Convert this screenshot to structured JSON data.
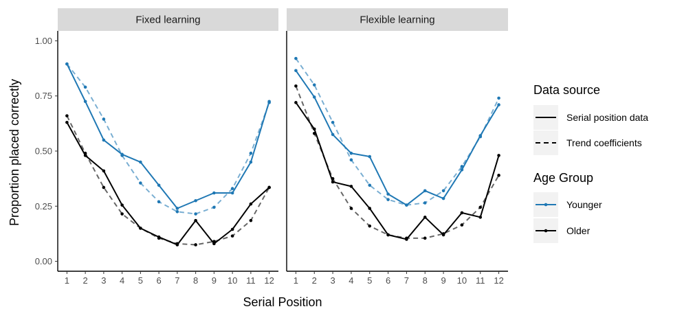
{
  "chart_data": {
    "type": "line",
    "xlabel": "Serial Position",
    "ylabel": "Proportion placed correctly",
    "x": [
      1,
      2,
      3,
      4,
      5,
      6,
      7,
      8,
      9,
      10,
      11,
      12
    ],
    "xlim": [
      0.5,
      12.5
    ],
    "ylim": [
      -0.045,
      1.045
    ],
    "yticks": [
      0.0,
      0.25,
      0.5,
      0.75,
      1.0
    ],
    "ytick_labels": [
      "0.00",
      "0.25",
      "0.50",
      "0.75",
      "1.00"
    ],
    "grid": false,
    "legend_placement": "right",
    "legends": [
      {
        "title": "Data source",
        "entries": [
          {
            "label": "Serial position data",
            "style": "solid"
          },
          {
            "label": "Trend coefficients",
            "style": "dashed"
          }
        ]
      },
      {
        "title": "Age Group",
        "entries": [
          {
            "label": "Younger",
            "color": "#1f78b4"
          },
          {
            "label": "Older",
            "color": "#000000"
          }
        ]
      }
    ],
    "panels": [
      {
        "title": "Fixed learning",
        "series": [
          {
            "group": "Younger",
            "source": "Serial position data",
            "values": [
              0.895,
              0.725,
              0.55,
              0.485,
              0.45,
              0.345,
              0.24,
              0.275,
              0.31,
              0.31,
              0.45,
              0.725
            ]
          },
          {
            "group": "Younger",
            "source": "Trend coefficients",
            "values": [
              0.895,
              0.79,
              0.645,
              0.48,
              0.355,
              0.27,
              0.225,
              0.215,
              0.245,
              0.33,
              0.49,
              0.72
            ]
          },
          {
            "group": "Older",
            "source": "Serial position data",
            "values": [
              0.63,
              0.48,
              0.41,
              0.255,
              0.15,
              0.11,
              0.075,
              0.185,
              0.08,
              0.145,
              0.26,
              0.335
            ]
          },
          {
            "group": "Older",
            "source": "Trend coefficients",
            "values": [
              0.66,
              0.49,
              0.335,
              0.215,
              0.15,
              0.105,
              0.08,
              0.075,
              0.09,
              0.115,
              0.185,
              0.335
            ]
          }
        ]
      },
      {
        "title": "Flexible learning",
        "series": [
          {
            "group": "Younger",
            "source": "Serial position data",
            "values": [
              0.865,
              0.745,
              0.575,
              0.49,
              0.475,
              0.305,
              0.255,
              0.32,
              0.285,
              0.415,
              0.57,
              0.71
            ]
          },
          {
            "group": "Younger",
            "source": "Trend coefficients",
            "values": [
              0.92,
              0.8,
              0.63,
              0.46,
              0.345,
              0.28,
              0.255,
              0.265,
              0.32,
              0.43,
              0.565,
              0.74
            ]
          },
          {
            "group": "Older",
            "source": "Serial position data",
            "values": [
              0.72,
              0.6,
              0.36,
              0.34,
              0.24,
              0.12,
              0.1,
              0.2,
              0.12,
              0.22,
              0.2,
              0.48
            ]
          },
          {
            "group": "Older",
            "source": "Trend coefficients",
            "values": [
              0.795,
              0.58,
              0.375,
              0.24,
              0.16,
              0.12,
              0.105,
              0.105,
              0.125,
              0.165,
              0.245,
              0.39
            ]
          }
        ]
      }
    ]
  }
}
